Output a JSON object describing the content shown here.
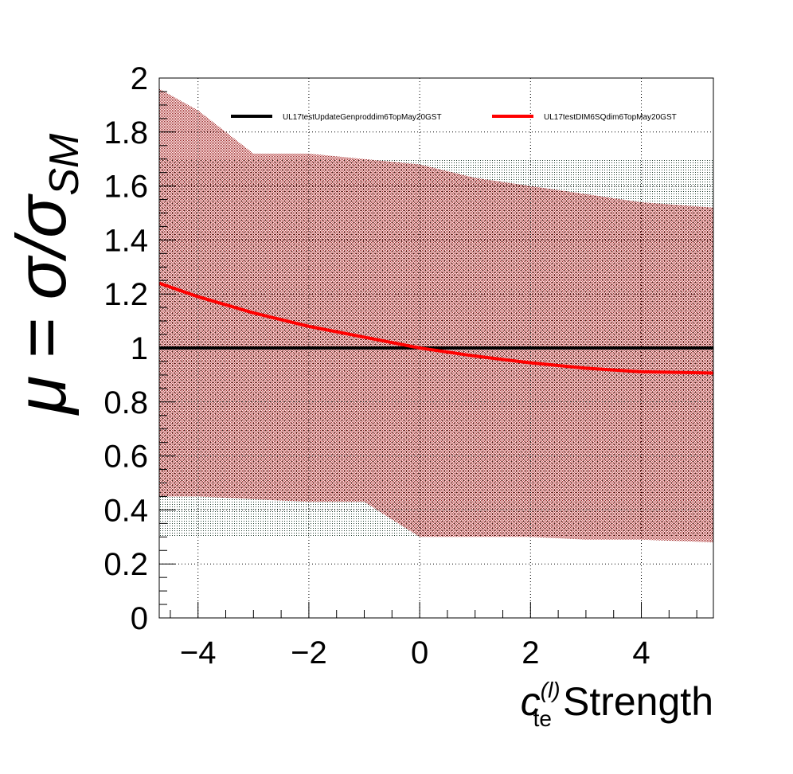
{
  "chart_data": {
    "type": "line",
    "xlabel": {
      "symbol": "c",
      "superscript": "(l)",
      "subscript": "te",
      "text": "Strength"
    },
    "ylabel": {
      "mu": "μ",
      "equals": "=",
      "sigma": "σ",
      "slash": "/",
      "sigma2": "σ",
      "subscript": "SM"
    },
    "xlim": [
      -4.7,
      5.3
    ],
    "ylim": [
      0,
      2
    ],
    "x_ticks": [
      {
        "value": -4,
        "label": "−4"
      },
      {
        "value": -2,
        "label": "−2"
      },
      {
        "value": 0,
        "label": "0"
      },
      {
        "value": 2,
        "label": "2"
      },
      {
        "value": 4,
        "label": "4"
      }
    ],
    "y_ticks": [
      {
        "value": 0,
        "label": "0"
      },
      {
        "value": 0.2,
        "label": "0.2"
      },
      {
        "value": 0.4,
        "label": "0.4"
      },
      {
        "value": 0.6,
        "label": "0.6"
      },
      {
        "value": 0.8,
        "label": "0.8"
      },
      {
        "value": 1.0,
        "label": "1"
      },
      {
        "value": 1.2,
        "label": "1.2"
      },
      {
        "value": 1.4,
        "label": "1.4"
      },
      {
        "value": 1.6,
        "label": "1.6"
      },
      {
        "value": 1.8,
        "label": "1.8"
      },
      {
        "value": 2.0,
        "label": "2"
      }
    ],
    "grid": true,
    "legend_position": "top",
    "series": [
      {
        "name": "UL17testUpdateGenproddim6TopMay20GST",
        "color": "#000000",
        "band_color": "#2a4a3a",
        "x": [
          -4.7,
          -4.0,
          -3.0,
          -2.0,
          -1.0,
          0.0,
          1.0,
          2.0,
          3.0,
          4.0,
          5.3
        ],
        "y": [
          1.0,
          1.0,
          1.0,
          1.0,
          1.0,
          1.0,
          1.0,
          1.0,
          1.0,
          1.0,
          1.0
        ],
        "band_upper": [
          1.7,
          1.7,
          1.7,
          1.7,
          1.7,
          1.7,
          1.7,
          1.7,
          1.7,
          1.7,
          1.7
        ],
        "band_lower": [
          0.3,
          0.3,
          0.3,
          0.3,
          0.3,
          0.3,
          0.3,
          0.3,
          0.3,
          0.3,
          0.3
        ]
      },
      {
        "name": "UL17testDIM6SQdim6TopMay20GST",
        "color": "#ff0000",
        "band_color": "#8b1010",
        "x": [
          -4.7,
          -4.0,
          -3.0,
          -2.0,
          -1.0,
          0.0,
          1.0,
          2.0,
          3.0,
          4.0,
          5.3
        ],
        "y": [
          1.24,
          1.19,
          1.13,
          1.08,
          1.04,
          1.0,
          0.97,
          0.945,
          0.925,
          0.912,
          0.907
        ],
        "band_upper": [
          1.96,
          1.88,
          1.72,
          1.72,
          1.7,
          1.68,
          1.63,
          1.6,
          1.57,
          1.54,
          1.52
        ],
        "band_lower": [
          0.45,
          0.45,
          0.44,
          0.43,
          0.43,
          0.3,
          0.3,
          0.3,
          0.29,
          0.29,
          0.28
        ]
      }
    ]
  }
}
